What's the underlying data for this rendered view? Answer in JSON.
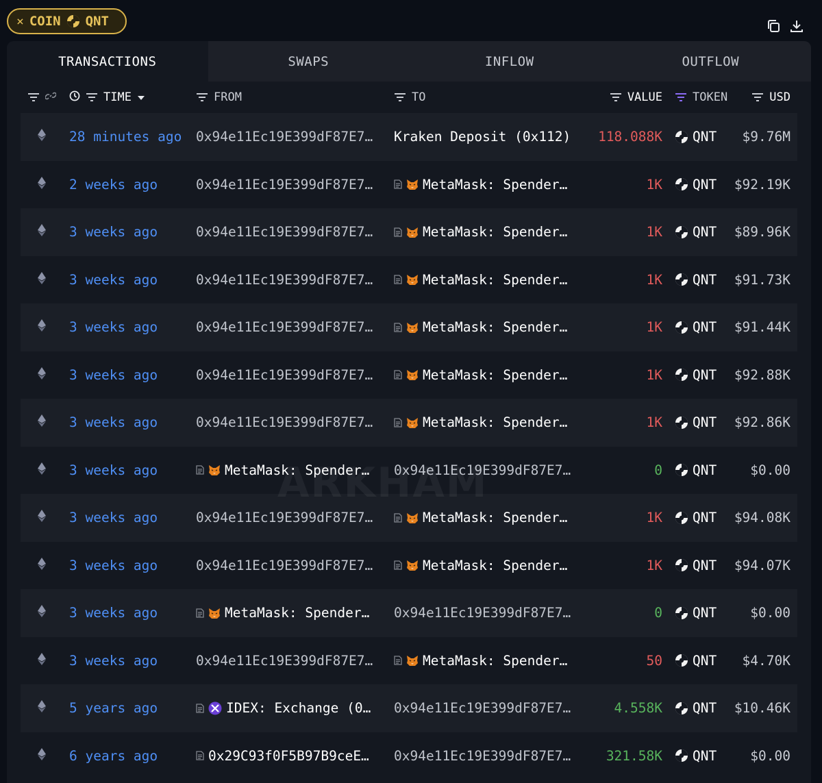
{
  "filter_chip": {
    "close": "×",
    "label": "COIN",
    "coin": "QNT"
  },
  "tabs": [
    "TRANSACTIONS",
    "SWAPS",
    "INFLOW",
    "OUTFLOW"
  ],
  "columns": {
    "time": "TIME",
    "from": "FROM",
    "to": "TO",
    "value": "VALUE",
    "token": "TOKEN",
    "usd": "USD"
  },
  "watermark": "ARKHAM",
  "colors": {
    "accent_gold": "#d8b24a",
    "time_link": "#4f8ff5",
    "outflow_red": "#e25b5b",
    "inflow_green": "#58b45c"
  },
  "rows": [
    {
      "time": "28 minutes ago",
      "from": "0x94e11Ec19E399dF87E7…",
      "to": "Kraken Deposit (0x112)",
      "value": "118.088K",
      "dir": "out",
      "token": "QNT",
      "usd": "$9.76M"
    },
    {
      "time": "2 weeks ago",
      "from": "0x94e11Ec19E399dF87E7…",
      "to": "MetaMask: Spender…",
      "to_icon": "fox",
      "value": "1K",
      "dir": "out",
      "token": "QNT",
      "usd": "$92.19K"
    },
    {
      "time": "3 weeks ago",
      "from": "0x94e11Ec19E399dF87E7…",
      "to": "MetaMask: Spender…",
      "to_icon": "fox",
      "value": "1K",
      "dir": "out",
      "token": "QNT",
      "usd": "$89.96K"
    },
    {
      "time": "3 weeks ago",
      "from": "0x94e11Ec19E399dF87E7…",
      "to": "MetaMask: Spender…",
      "to_icon": "fox",
      "value": "1K",
      "dir": "out",
      "token": "QNT",
      "usd": "$91.73K"
    },
    {
      "time": "3 weeks ago",
      "from": "0x94e11Ec19E399dF87E7…",
      "to": "MetaMask: Spender…",
      "to_icon": "fox",
      "value": "1K",
      "dir": "out",
      "token": "QNT",
      "usd": "$91.44K"
    },
    {
      "time": "3 weeks ago",
      "from": "0x94e11Ec19E399dF87E7…",
      "to": "MetaMask: Spender…",
      "to_icon": "fox",
      "value": "1K",
      "dir": "out",
      "token": "QNT",
      "usd": "$92.88K"
    },
    {
      "time": "3 weeks ago",
      "from": "0x94e11Ec19E399dF87E7…",
      "to": "MetaMask: Spender…",
      "to_icon": "fox",
      "value": "1K",
      "dir": "out",
      "token": "QNT",
      "usd": "$92.86K"
    },
    {
      "time": "3 weeks ago",
      "from": "MetaMask: Spender…",
      "from_icon": "fox",
      "to": "0x94e11Ec19E399dF87E7…",
      "value": "0",
      "dir": "in",
      "token": "QNT",
      "usd": "$0.00"
    },
    {
      "time": "3 weeks ago",
      "from": "0x94e11Ec19E399dF87E7…",
      "to": "MetaMask: Spender…",
      "to_icon": "fox",
      "value": "1K",
      "dir": "out",
      "token": "QNT",
      "usd": "$94.08K"
    },
    {
      "time": "3 weeks ago",
      "from": "0x94e11Ec19E399dF87E7…",
      "to": "MetaMask: Spender…",
      "to_icon": "fox",
      "value": "1K",
      "dir": "out",
      "token": "QNT",
      "usd": "$94.07K"
    },
    {
      "time": "3 weeks ago",
      "from": "MetaMask: Spender…",
      "from_icon": "fox",
      "to": "0x94e11Ec19E399dF87E7…",
      "value": "0",
      "dir": "in",
      "token": "QNT",
      "usd": "$0.00"
    },
    {
      "time": "3 weeks ago",
      "from": "0x94e11Ec19E399dF87E7…",
      "to": "MetaMask: Spender…",
      "to_icon": "fox",
      "value": "50",
      "dir": "out",
      "token": "QNT",
      "usd": "$4.70K"
    },
    {
      "time": "5 years ago",
      "from": "IDEX: Exchange (0…",
      "from_icon": "idex",
      "to": "0x94e11Ec19E399dF87E7…",
      "value": "4.558K",
      "dir": "in",
      "token": "QNT",
      "usd": "$10.46K"
    },
    {
      "time": "6 years ago",
      "from": "0x29C93f0F5B97B9ceE…",
      "from_icon": "doc",
      "to": "0x94e11Ec19E399dF87E7…",
      "value": "321.58K",
      "dir": "in",
      "token": "QNT",
      "usd": "$0.00"
    }
  ]
}
